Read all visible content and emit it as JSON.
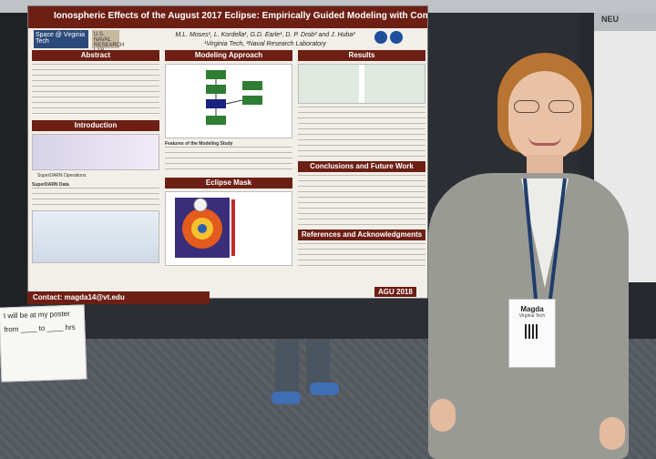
{
  "poster": {
    "title": "Ionospheric Effects of the August 2017 Eclipse: Empirically Guided Modeling with Comparisons to Data",
    "authors": "M.L. Moses¹, L. Kordella¹, G.D. Earle¹, D. P. Drob² and J. Huba²",
    "affiliations": "¹Virginia Tech, ²Naval Research Laboratory",
    "sections": {
      "abstract": "Abstract",
      "introduction": "Introduction",
      "modeling_approach": "Modeling Approach",
      "eclipse_mask": "Eclipse Mask",
      "results": "Results",
      "conclusions": "Conclusions and Future Work",
      "references": "References and Acknowledgments"
    },
    "intro_subhead": "SuperDARN Operations",
    "superdarn_data": "SuperDARN Data",
    "features_head": "Features of the Modeling Study",
    "contact": "Contact: magda14@vt.edu",
    "conference": "AGU 2018",
    "vt_logo": "Space @ Virginia Tech",
    "nrl_logo": "U.S. NAVAL RESEARCH LAB"
  },
  "note": {
    "line1": "I will be at my poster",
    "line2": "from ____ to ____ hrs"
  },
  "badge": {
    "name": "Magda",
    "subtitle": "Virginia Tech"
  },
  "right_poster": {
    "label": "NEU"
  },
  "colors": {
    "poster_accent": "#6d1f14",
    "hair": "#b77433",
    "jacket": "#9a9a95"
  }
}
